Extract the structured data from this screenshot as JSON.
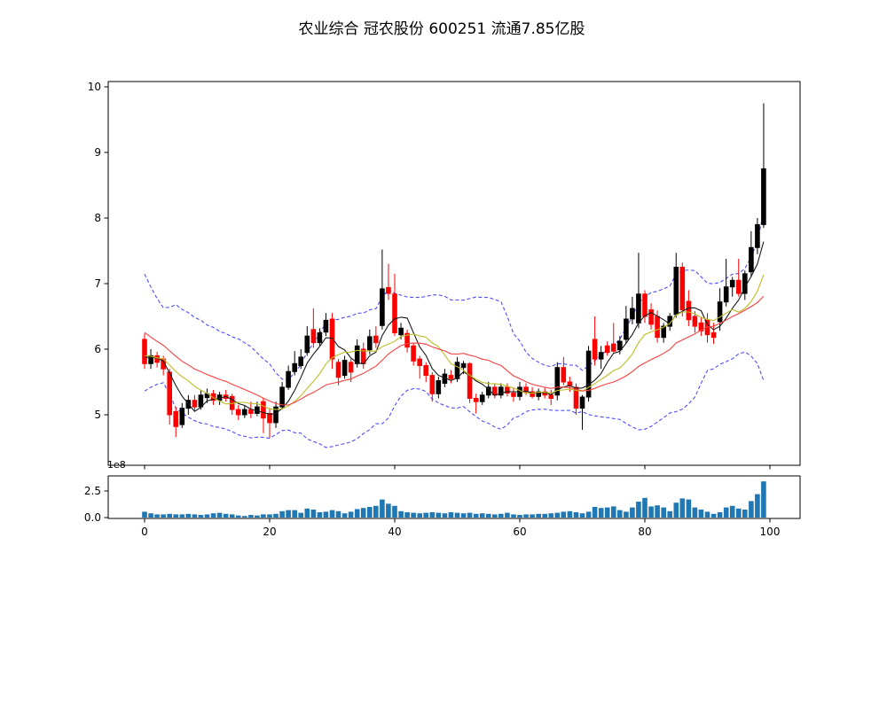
{
  "title": "农业综合  冠农股份  600251  流通7.85亿股",
  "chart_data": {
    "type": "candlestick+volume",
    "title": "农业综合  冠农股份  600251  流通7.85亿股",
    "ohlc_order": [
      "open",
      "high",
      "low",
      "close"
    ],
    "candles": [
      [
        6.15,
        6.24,
        5.7,
        5.78
      ],
      [
        5.78,
        6.0,
        5.7,
        5.9
      ],
      [
        5.9,
        5.96,
        5.72,
        5.8
      ],
      [
        5.85,
        5.9,
        5.6,
        5.7
      ],
      [
        5.65,
        5.7,
        4.85,
        5.0
      ],
      [
        5.05,
        5.12,
        4.66,
        4.82
      ],
      [
        4.85,
        5.18,
        4.8,
        5.1
      ],
      [
        5.1,
        5.3,
        5.0,
        5.22
      ],
      [
        5.22,
        5.3,
        5.05,
        5.12
      ],
      [
        5.12,
        5.38,
        5.08,
        5.3
      ],
      [
        5.26,
        5.4,
        5.18,
        5.32
      ],
      [
        5.32,
        5.38,
        5.15,
        5.22
      ],
      [
        5.22,
        5.35,
        5.15,
        5.3
      ],
      [
        5.3,
        5.38,
        5.2,
        5.25
      ],
      [
        5.28,
        5.32,
        5.0,
        5.08
      ],
      [
        5.08,
        5.15,
        4.92,
        5.0
      ],
      [
        5.0,
        5.15,
        4.95,
        5.08
      ],
      [
        5.08,
        5.2,
        4.95,
        5.02
      ],
      [
        5.02,
        5.2,
        4.98,
        5.12
      ],
      [
        5.2,
        5.25,
        4.72,
        4.95
      ],
      [
        5.02,
        5.1,
        4.65,
        4.88
      ],
      [
        4.88,
        5.2,
        4.8,
        5.12
      ],
      [
        5.12,
        5.5,
        5.08,
        5.42
      ],
      [
        5.42,
        5.75,
        5.38,
        5.66
      ],
      [
        5.66,
        5.97,
        5.6,
        5.78
      ],
      [
        5.75,
        6.0,
        5.7,
        5.88
      ],
      [
        5.95,
        6.35,
        5.9,
        6.2
      ],
      [
        6.3,
        6.62,
        6.02,
        6.1
      ],
      [
        6.1,
        6.32,
        6.05,
        6.25
      ],
      [
        6.26,
        6.55,
        6.2,
        6.44
      ],
      [
        6.46,
        6.55,
        5.7,
        5.85
      ],
      [
        5.8,
        5.85,
        5.45,
        5.57
      ],
      [
        5.6,
        5.9,
        5.55,
        5.83
      ],
      [
        5.8,
        5.85,
        5.5,
        5.65
      ],
      [
        5.78,
        6.15,
        5.72,
        6.05
      ],
      [
        6.0,
        6.1,
        5.7,
        5.78
      ],
      [
        5.99,
        6.3,
        5.92,
        6.19
      ],
      [
        6.2,
        6.35,
        6.02,
        6.1
      ],
      [
        6.36,
        7.52,
        6.3,
        6.92
      ],
      [
        6.94,
        7.3,
        6.75,
        6.85
      ],
      [
        6.84,
        7.15,
        6.2,
        6.25
      ],
      [
        6.22,
        6.4,
        6.15,
        6.32
      ],
      [
        6.24,
        6.3,
        5.95,
        6.03
      ],
      [
        6.05,
        6.1,
        5.75,
        5.82
      ],
      [
        5.85,
        5.9,
        5.55,
        5.75
      ],
      [
        5.75,
        5.8,
        5.5,
        5.6
      ],
      [
        5.6,
        5.65,
        5.2,
        5.32
      ],
      [
        5.32,
        5.58,
        5.25,
        5.52
      ],
      [
        5.48,
        5.7,
        5.42,
        5.62
      ],
      [
        5.6,
        5.68,
        5.48,
        5.55
      ],
      [
        5.55,
        5.88,
        5.5,
        5.8
      ],
      [
        5.72,
        5.82,
        5.62,
        5.78
      ],
      [
        5.78,
        5.8,
        5.18,
        5.25
      ],
      [
        5.25,
        5.32,
        5.02,
        5.2
      ],
      [
        5.2,
        5.35,
        5.15,
        5.3
      ],
      [
        5.3,
        5.5,
        5.25,
        5.42
      ],
      [
        5.42,
        5.48,
        5.25,
        5.3
      ],
      [
        5.3,
        5.48,
        5.25,
        5.42
      ],
      [
        5.42,
        5.48,
        5.28,
        5.33
      ],
      [
        5.33,
        5.4,
        5.2,
        5.28
      ],
      [
        5.28,
        5.5,
        5.22,
        5.42
      ],
      [
        5.42,
        5.48,
        5.3,
        5.35
      ],
      [
        5.35,
        5.42,
        5.25,
        5.28
      ],
      [
        5.28,
        5.4,
        5.22,
        5.35
      ],
      [
        5.35,
        5.42,
        5.25,
        5.3
      ],
      [
        5.3,
        5.38,
        5.15,
        5.25
      ],
      [
        5.3,
        5.8,
        5.22,
        5.72
      ],
      [
        5.72,
        5.88,
        5.45,
        5.5
      ],
      [
        5.5,
        5.58,
        5.35,
        5.45
      ],
      [
        5.42,
        5.48,
        5.0,
        5.1
      ],
      [
        5.1,
        5.3,
        4.77,
        5.27
      ],
      [
        5.27,
        6.05,
        5.2,
        5.97
      ],
      [
        6.15,
        6.5,
        5.75,
        5.85
      ],
      [
        5.85,
        6.05,
        5.7,
        5.95
      ],
      [
        6.05,
        6.12,
        5.9,
        5.95
      ],
      [
        6.08,
        6.4,
        5.95,
        5.97
      ],
      [
        5.99,
        6.2,
        5.92,
        6.12
      ],
      [
        6.15,
        6.66,
        6.08,
        6.46
      ],
      [
        6.46,
        6.8,
        6.38,
        6.62
      ],
      [
        6.4,
        7.47,
        6.32,
        6.84
      ],
      [
        6.84,
        6.9,
        6.4,
        6.5
      ],
      [
        6.6,
        6.7,
        6.3,
        6.38
      ],
      [
        6.5,
        6.59,
        6.1,
        6.18
      ],
      [
        6.18,
        6.4,
        6.1,
        6.35
      ],
      [
        6.35,
        6.55,
        6.28,
        6.5
      ],
      [
        6.53,
        7.47,
        6.48,
        7.25
      ],
      [
        7.25,
        7.32,
        6.5,
        6.6
      ],
      [
        6.73,
        6.9,
        6.35,
        6.45
      ],
      [
        6.5,
        6.58,
        6.25,
        6.35
      ],
      [
        6.4,
        6.48,
        6.2,
        6.28
      ],
      [
        6.44,
        6.55,
        6.1,
        6.22
      ],
      [
        6.25,
        6.4,
        6.08,
        6.18
      ],
      [
        6.42,
        6.93,
        6.28,
        6.72
      ],
      [
        6.72,
        7.38,
        6.65,
        6.95
      ],
      [
        6.95,
        7.1,
        6.8,
        7.05
      ],
      [
        7.05,
        7.38,
        6.8,
        6.85
      ],
      [
        6.85,
        7.2,
        6.75,
        7.15
      ],
      [
        7.18,
        7.8,
        7.1,
        7.55
      ],
      [
        7.55,
        8.0,
        7.45,
        7.9
      ],
      [
        7.9,
        9.75,
        7.85,
        8.75
      ]
    ],
    "volumes_1e8": [
      0.55,
      0.4,
      0.3,
      0.3,
      0.35,
      0.3,
      0.3,
      0.35,
      0.3,
      0.25,
      0.3,
      0.4,
      0.45,
      0.35,
      0.3,
      0.2,
      0.15,
      0.25,
      0.2,
      0.3,
      0.3,
      0.35,
      0.6,
      0.7,
      0.7,
      0.45,
      0.85,
      0.75,
      0.5,
      0.55,
      0.7,
      0.6,
      0.4,
      0.55,
      0.8,
      0.9,
      1.0,
      1.1,
      1.7,
      1.3,
      1.1,
      0.6,
      0.5,
      0.45,
      0.4,
      0.45,
      0.5,
      0.45,
      0.4,
      0.5,
      0.45,
      0.4,
      0.45,
      0.35,
      0.4,
      0.35,
      0.3,
      0.35,
      0.45,
      0.3,
      0.25,
      0.3,
      0.3,
      0.35,
      0.35,
      0.4,
      0.45,
      0.55,
      0.6,
      0.5,
      0.4,
      0.55,
      1.0,
      0.9,
      0.95,
      1.05,
      0.7,
      0.55,
      0.95,
      1.5,
      1.85,
      1.05,
      1.15,
      0.95,
      0.6,
      1.4,
      1.8,
      1.7,
      0.95,
      0.75,
      0.55,
      0.35,
      0.5,
      0.95,
      1.1,
      0.85,
      0.75,
      1.55,
      2.2,
      3.4
    ],
    "price_axis": {
      "ticks": [
        5,
        6,
        7,
        8,
        9,
        10
      ],
      "range": [
        4.23,
        10.08
      ]
    },
    "index_axis": {
      "ticks": [
        0,
        20,
        40,
        60,
        80,
        100
      ],
      "range": [
        -6,
        105
      ]
    },
    "volume_axis": {
      "tick_labels": [
        "0.0",
        "2.5"
      ],
      "tick_values": [
        0,
        2.5
      ],
      "offset_label": "1e8",
      "range": [
        0,
        3.9
      ]
    },
    "overlays": [
      {
        "name": "ma5",
        "window": 5,
        "color": "#1a1a1a",
        "style": "solid"
      },
      {
        "name": "ma10",
        "window": 10,
        "color": "#bdbd22",
        "style": "solid"
      },
      {
        "name": "ma20",
        "window": 20,
        "color": "#fa4040",
        "style": "solid"
      },
      {
        "name": "bollinger-upper",
        "window": 20,
        "k": 2,
        "color": "#4d4dff",
        "style": "dashed"
      },
      {
        "name": "bollinger-lower",
        "window": 20,
        "k": -2,
        "color": "#4d4dff",
        "style": "dashed"
      }
    ],
    "overlay_seed_closes": [
      7.5,
      7.3,
      7.1,
      6.9,
      6.7,
      6.5,
      6.6,
      6.3,
      6.4,
      6.1,
      6.2,
      5.95,
      6.05,
      5.85,
      5.95,
      5.8,
      5.9,
      5.85,
      5.95,
      5.9
    ],
    "colors": {
      "up_candle": "#000000",
      "down_candle": "#ff0000",
      "volume_bar": "#1f77b4",
      "axis": "#000000",
      "background": "#ffffff"
    }
  }
}
